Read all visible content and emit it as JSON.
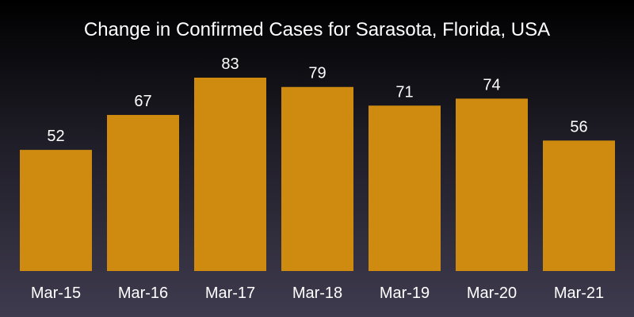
{
  "chart_data": {
    "type": "bar",
    "title": "Change in Confirmed Cases for Sarasota, Florida, USA",
    "xlabel": "",
    "ylabel": "",
    "categories": [
      "Mar-15",
      "Mar-16",
      "Mar-17",
      "Mar-18",
      "Mar-19",
      "Mar-20",
      "Mar-21"
    ],
    "values": [
      52,
      67,
      83,
      79,
      71,
      74,
      56
    ],
    "value_labels": [
      "52",
      "67",
      "83",
      "79",
      "71",
      "74",
      "56"
    ],
    "ylim": [
      0,
      100
    ],
    "grid": false,
    "legend": "none",
    "colors": {
      "bar": "#cf8b10",
      "text": "#ffffff",
      "background_top": "#000000",
      "background_bottom": "#3f3b4f"
    }
  }
}
